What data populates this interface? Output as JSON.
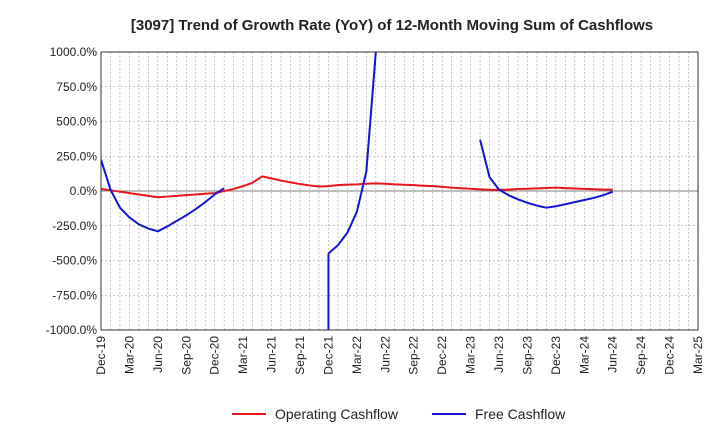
{
  "chart_data": {
    "type": "line",
    "title": "[3097]  Trend of Growth Rate (YoY) of 12-Month Moving Sum of Cashflows",
    "xlabel": "",
    "ylabel": "",
    "ylim": [
      -1000,
      1000
    ],
    "yticks": [
      1000,
      750,
      500,
      250,
      0,
      -250,
      -500,
      -750,
      -1000
    ],
    "ytick_labels": [
      "1000.0%",
      "750.0%",
      "500.0%",
      "250.0%",
      "0.0%",
      "-250.0%",
      "-500.0%",
      "-750.0%",
      "-1000.0%"
    ],
    "x_months": [
      "Dec-19",
      "Jan-20",
      "Feb-20",
      "Mar-20",
      "Apr-20",
      "May-20",
      "Jun-20",
      "Jul-20",
      "Aug-20",
      "Sep-20",
      "Oct-20",
      "Nov-20",
      "Dec-20",
      "Jan-21",
      "Feb-21",
      "Mar-21",
      "Apr-21",
      "May-21",
      "Jun-21",
      "Jul-21",
      "Aug-21",
      "Sep-21",
      "Oct-21",
      "Nov-21",
      "Dec-21",
      "Jan-22",
      "Feb-22",
      "Mar-22",
      "Apr-22",
      "May-22",
      "Jun-22",
      "Jul-22",
      "Aug-22",
      "Sep-22",
      "Oct-22",
      "Nov-22",
      "Dec-22",
      "Jan-23",
      "Feb-23",
      "Mar-23",
      "Apr-23",
      "May-23",
      "Jun-23",
      "Jul-23",
      "Aug-23",
      "Sep-23",
      "Oct-23",
      "Nov-23",
      "Dec-23",
      "Jan-24",
      "Feb-24",
      "Mar-24",
      "Apr-24",
      "May-24",
      "Jun-24",
      "Jul-24",
      "Aug-24",
      "Sep-24",
      "Oct-24",
      "Nov-24",
      "Dec-24",
      "Jan-25",
      "Feb-25",
      "Mar-25"
    ],
    "x_tick_labels": [
      "Dec-19",
      "Mar-20",
      "Jun-20",
      "Sep-20",
      "Dec-20",
      "Mar-21",
      "Jun-21",
      "Sep-21",
      "Dec-21",
      "Mar-22",
      "Jun-22",
      "Sep-22",
      "Dec-22",
      "Mar-23",
      "Jun-23",
      "Sep-23",
      "Dec-23",
      "Mar-24",
      "Jun-24",
      "Sep-24",
      "Dec-24",
      "Mar-25"
    ],
    "grid": true,
    "legend_position": "bottom",
    "series": [
      {
        "name": "Operating Cashflow",
        "color": "#e8161b",
        "values": [
          15,
          5,
          -5,
          -15,
          -25,
          -35,
          -45,
          -40,
          -35,
          -30,
          -25,
          -20,
          -15,
          0,
          15,
          35,
          60,
          105,
          90,
          75,
          62,
          50,
          40,
          32,
          35,
          42,
          46,
          48,
          52,
          55,
          52,
          48,
          45,
          42,
          38,
          35,
          30,
          24,
          20,
          16,
          12,
          9,
          8,
          10,
          14,
          16,
          19,
          22,
          24,
          21,
          18,
          15,
          13,
          11,
          9,
          null,
          null,
          null,
          null,
          null,
          null,
          null,
          null,
          null
        ]
      },
      {
        "name": "Free Cashflow",
        "color": "#1414d2",
        "values": [
          225,
          10,
          -120,
          -190,
          -240,
          -270,
          -290,
          -255,
          -215,
          -175,
          -130,
          -80,
          -25,
          20,
          null,
          null,
          null,
          null,
          null,
          null,
          null,
          null,
          null,
          null,
          null,
          null,
          null,
          null,
          null,
          null,
          null,
          null,
          null,
          null,
          null,
          null,
          null,
          null,
          null,
          null,
          null,
          null,
          null,
          null,
          null,
          null,
          null,
          null,
          null,
          null,
          null,
          null,
          null,
          null,
          null,
          null,
          null,
          null,
          null,
          null,
          null,
          null,
          null,
          null
        ]
      }
    ],
    "free_cashflow_segments": [
      {
        "months": [
          "Dec-19",
          "Jan-20",
          "Feb-20",
          "Mar-20",
          "Apr-20",
          "May-20",
          "Jun-20",
          "Jul-20",
          "Aug-20",
          "Sep-20",
          "Oct-20",
          "Nov-20",
          "Dec-20",
          "Jan-21"
        ],
        "values": [
          225,
          10,
          -120,
          -190,
          -240,
          -270,
          -290,
          -255,
          -215,
          -175,
          -130,
          -80,
          -25,
          20
        ]
      },
      {
        "months": [
          "Dec-21",
          "Jan-22",
          "Feb-22",
          "Mar-22",
          "Apr-22",
          "May-22"
        ],
        "values": [
          -450,
          -390,
          -300,
          -150,
          140,
          1000
        ]
      },
      {
        "months": [
          "Apr-23",
          "May-23",
          "Jun-23",
          "Jul-23",
          "Aug-23",
          "Sep-23",
          "Oct-23",
          "Nov-23",
          "Dec-23",
          "Jan-24",
          "Feb-24",
          "Mar-24",
          "Apr-24",
          "May-24",
          "Jun-24"
        ],
        "values": [
          370,
          100,
          10,
          -30,
          -60,
          -85,
          -105,
          -120,
          -110,
          -95,
          -80,
          -65,
          -50,
          -30,
          -5
        ]
      }
    ],
    "free_cashflow_offscale_drops": [
      {
        "from_month": "Dec-21",
        "from_value": -450,
        "direction": "down"
      }
    ]
  }
}
